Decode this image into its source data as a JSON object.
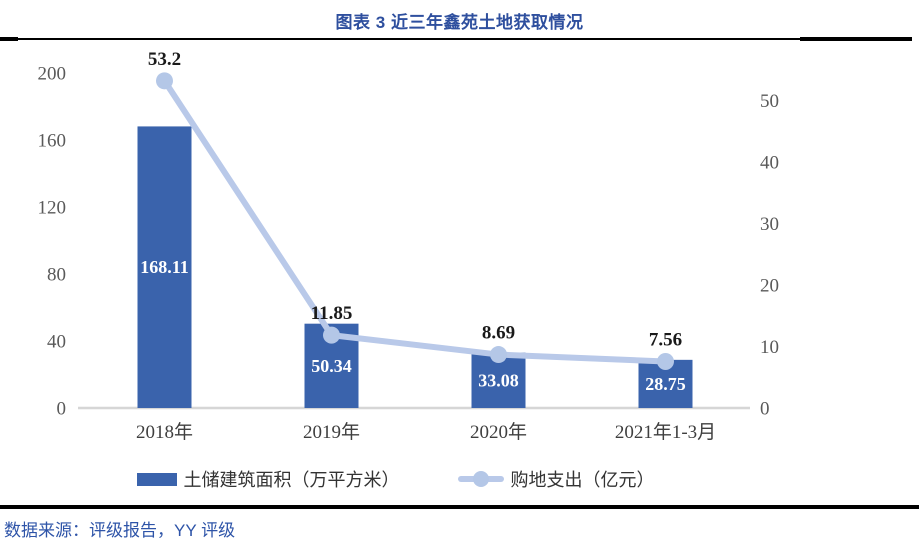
{
  "header": {
    "title": "图表 3 近三年鑫苑土地获取情况"
  },
  "footer": {
    "source": "数据来源：评级报告，YY 评级"
  },
  "chart_data": {
    "type": "bar",
    "subtype": "bar-line-combo",
    "title": "图表 3 近三年鑫苑土地获取情况",
    "categories": [
      "2018年",
      "2019年",
      "2020年",
      "2021年1-3月"
    ],
    "series": [
      {
        "name": "土储建筑面积（万平方米）",
        "type": "bar",
        "axis": "left",
        "values": [
          168.11,
          50.34,
          33.08,
          28.75
        ],
        "labels": [
          "168.11",
          "50.34",
          "33.08",
          "28.75"
        ],
        "color": "#3a63ac",
        "label_color": "#ffffff"
      },
      {
        "name": "购地支出（亿元）",
        "type": "line",
        "axis": "right",
        "values": [
          53.2,
          11.85,
          8.69,
          7.56
        ],
        "labels": [
          "53.2",
          "11.85",
          "8.69",
          "7.56"
        ],
        "color": "#b9c9e9",
        "marker_color": "#b4c7e7",
        "label_color": "#1a1a1a"
      }
    ],
    "left_axis": {
      "ticks": [
        0,
        40,
        80,
        120,
        160,
        200
      ],
      "range": [
        0,
        200
      ]
    },
    "right_axis": {
      "ticks": [
        0,
        10,
        20,
        30,
        40,
        50
      ],
      "range": [
        0,
        50
      ]
    },
    "grid": false,
    "legend_position": "bottom",
    "colors": {
      "axis_tick_text": "#595959",
      "category_text": "#3f3f3f",
      "baseline": "#d6d6d6",
      "title_text": "#2e4f9e",
      "source_text": "#2e54a8"
    }
  }
}
